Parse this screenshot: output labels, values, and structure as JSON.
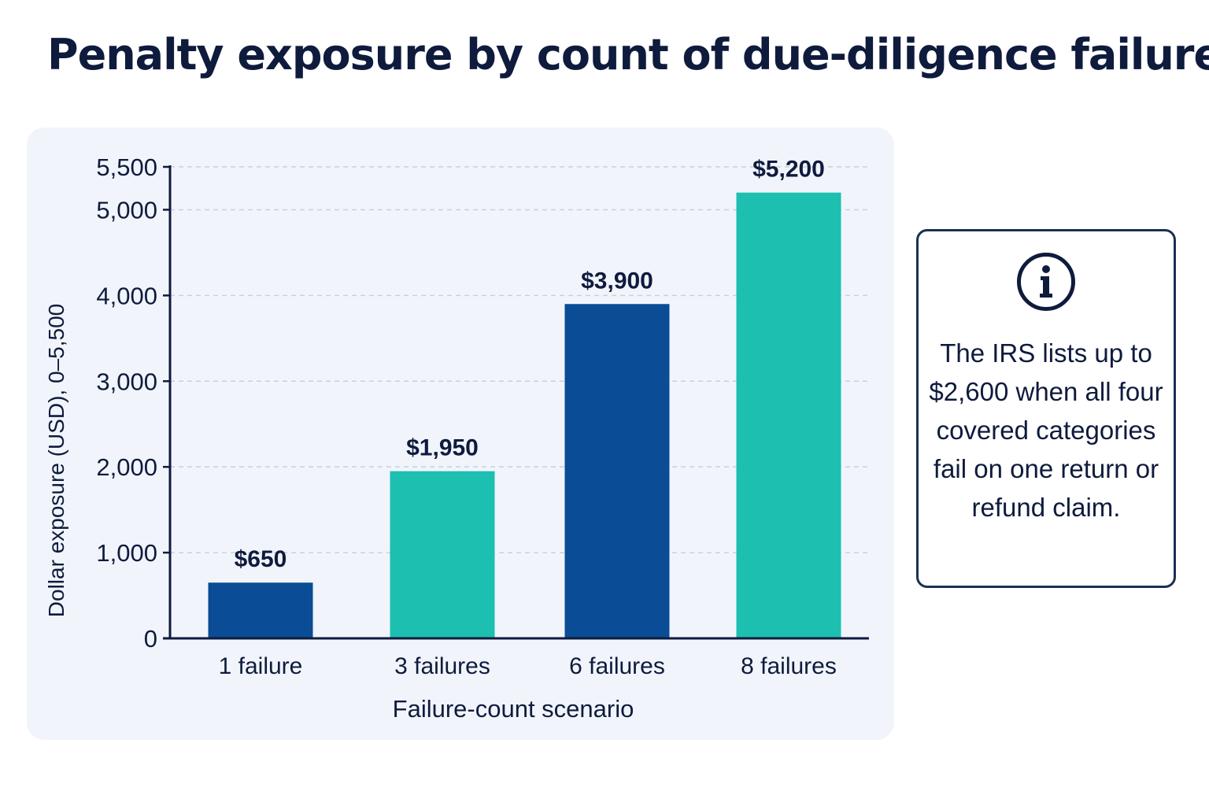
{
  "title": "Penalty exposure by count of due-diligence failures",
  "info_box": {
    "icon": "info-icon",
    "text": "The IRS lists up to $2,600 when all four covered categories fail on one return or refund claim."
  },
  "colors": {
    "navy": "#0a4c96",
    "teal": "#1cbfb0",
    "panel": "#f1f5fb",
    "text": "#0f1b3d"
  },
  "chart_data": {
    "type": "bar",
    "title": "Penalty exposure by count of due-diligence failures",
    "xlabel": "Failure-count scenario",
    "ylabel": "Dollar exposure (USD), 0–5,500",
    "categories": [
      "1 failure",
      "3 failures",
      "6 failures",
      "8 failures"
    ],
    "values": [
      650,
      1950,
      3900,
      5200
    ],
    "data_labels": [
      "$650",
      "$1,950",
      "$3,900",
      "$5,200"
    ],
    "bar_colors": [
      "#0a4c96",
      "#1cbfb0",
      "#0a4c96",
      "#1cbfb0"
    ],
    "ylim": [
      0,
      5500
    ],
    "yticks": [
      0,
      1000,
      2000,
      3000,
      4000,
      5000,
      5500
    ],
    "ytick_labels": [
      "0",
      "1,000",
      "2,000",
      "3,000",
      "4,000",
      "5,000",
      "5,500"
    ],
    "grid": true,
    "legend": "none"
  }
}
